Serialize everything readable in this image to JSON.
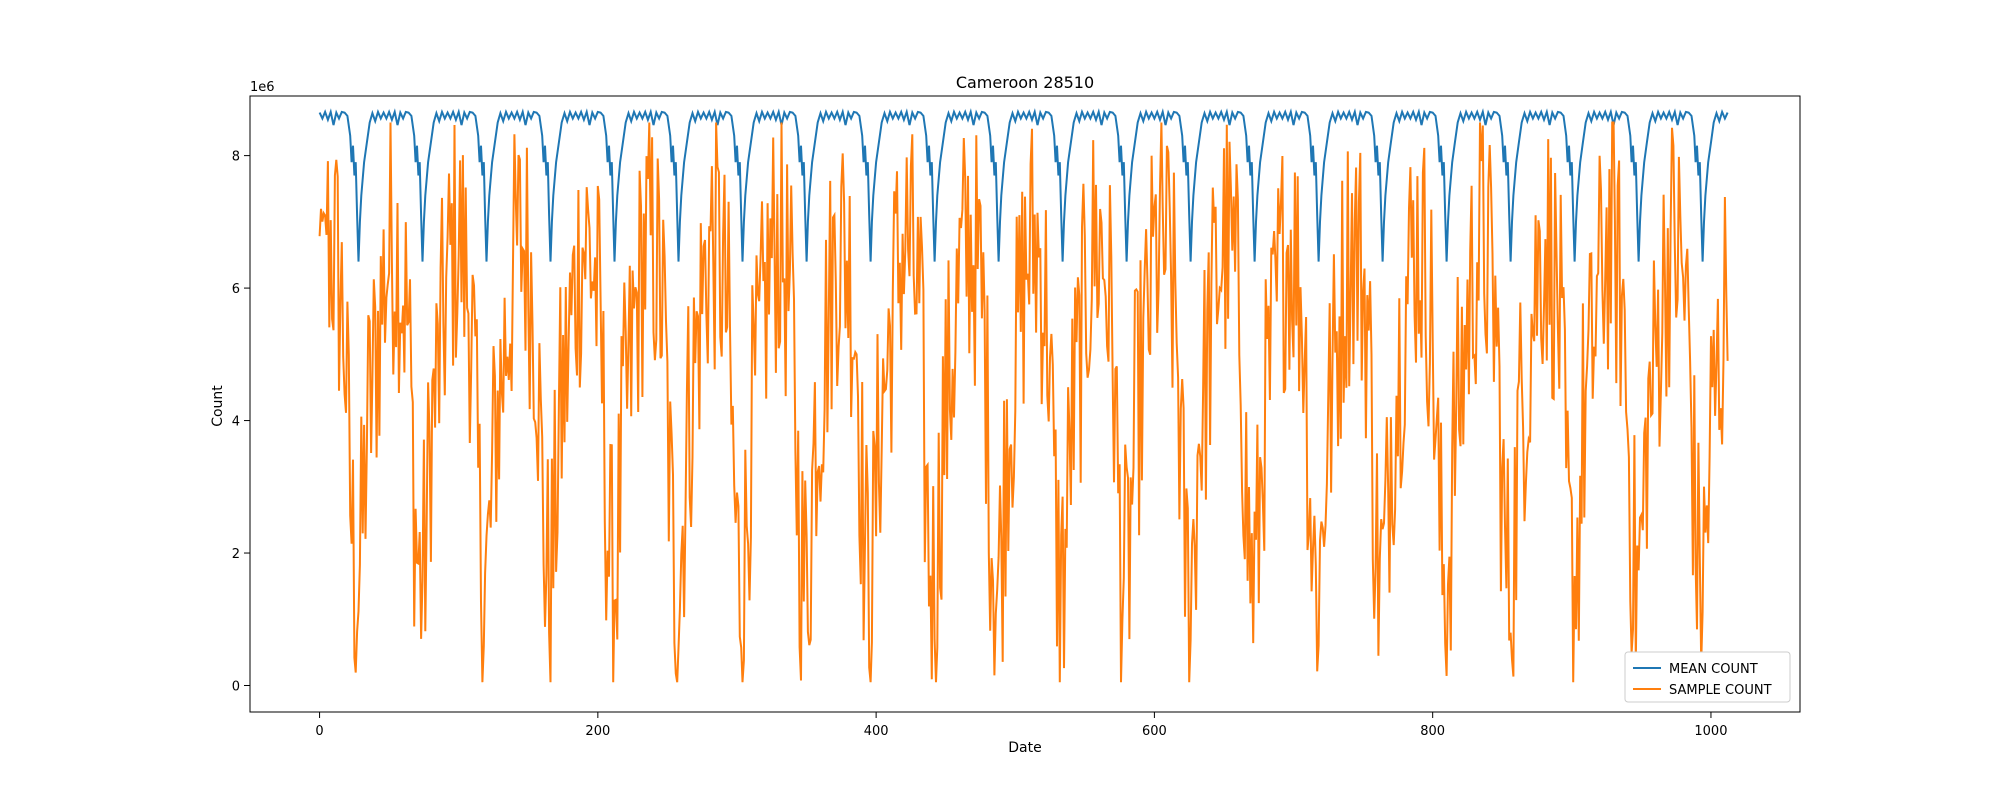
{
  "chart_data": {
    "type": "line",
    "title": "Cameroon 28510",
    "xlabel": "Date",
    "ylabel": "Count",
    "y_offset_text": "1e6",
    "xlim": [
      -50,
      1064
    ],
    "ylim": [
      -400000,
      8900000
    ],
    "x_ticks": [
      0,
      200,
      400,
      600,
      800,
      1000
    ],
    "y_ticks": [
      0,
      2000000,
      4000000,
      6000000,
      8000000
    ],
    "y_tick_labels": [
      "0",
      "2",
      "4",
      "6",
      "8"
    ],
    "x_tick_labels": [
      "0",
      "200",
      "400",
      "600",
      "800",
      "1000"
    ],
    "legend_position": "lower-right",
    "grid": false,
    "series": [
      {
        "name": "MEAN COUNT",
        "color": "#1f77b4",
        "x_range": [
          0,
          1012
        ],
        "period": 46,
        "points": [
          [
            0,
            8650000
          ],
          [
            2,
            8560000
          ],
          [
            4,
            8660000
          ],
          [
            6,
            8540000
          ],
          [
            8,
            8660000
          ],
          [
            10,
            8460000
          ],
          [
            12,
            8650000
          ],
          [
            14,
            8560000
          ],
          [
            16,
            8660000
          ],
          [
            18,
            8650000
          ],
          [
            20,
            8600000
          ],
          [
            22,
            8300000
          ],
          [
            23,
            7900000
          ],
          [
            24,
            8150000
          ],
          [
            25,
            7700000
          ],
          [
            26,
            7900000
          ],
          [
            27,
            7100000
          ],
          [
            28,
            6400000
          ],
          [
            29,
            7000000
          ],
          [
            30,
            7400000
          ],
          [
            32,
            7900000
          ],
          [
            34,
            8200000
          ],
          [
            36,
            8500000
          ],
          [
            38,
            8640000
          ],
          [
            40,
            8520000
          ],
          [
            42,
            8660000
          ],
          [
            44,
            8560000
          ],
          [
            46,
            8650000
          ]
        ]
      },
      {
        "name": "SAMPLE COUNT",
        "color": "#ff7f0e",
        "x_range": [
          0,
          1012
        ],
        "period_approx": 46,
        "mean_level_range": [
          1500000,
          6500000
        ],
        "min": 50000,
        "max": 8500000
      }
    ]
  }
}
